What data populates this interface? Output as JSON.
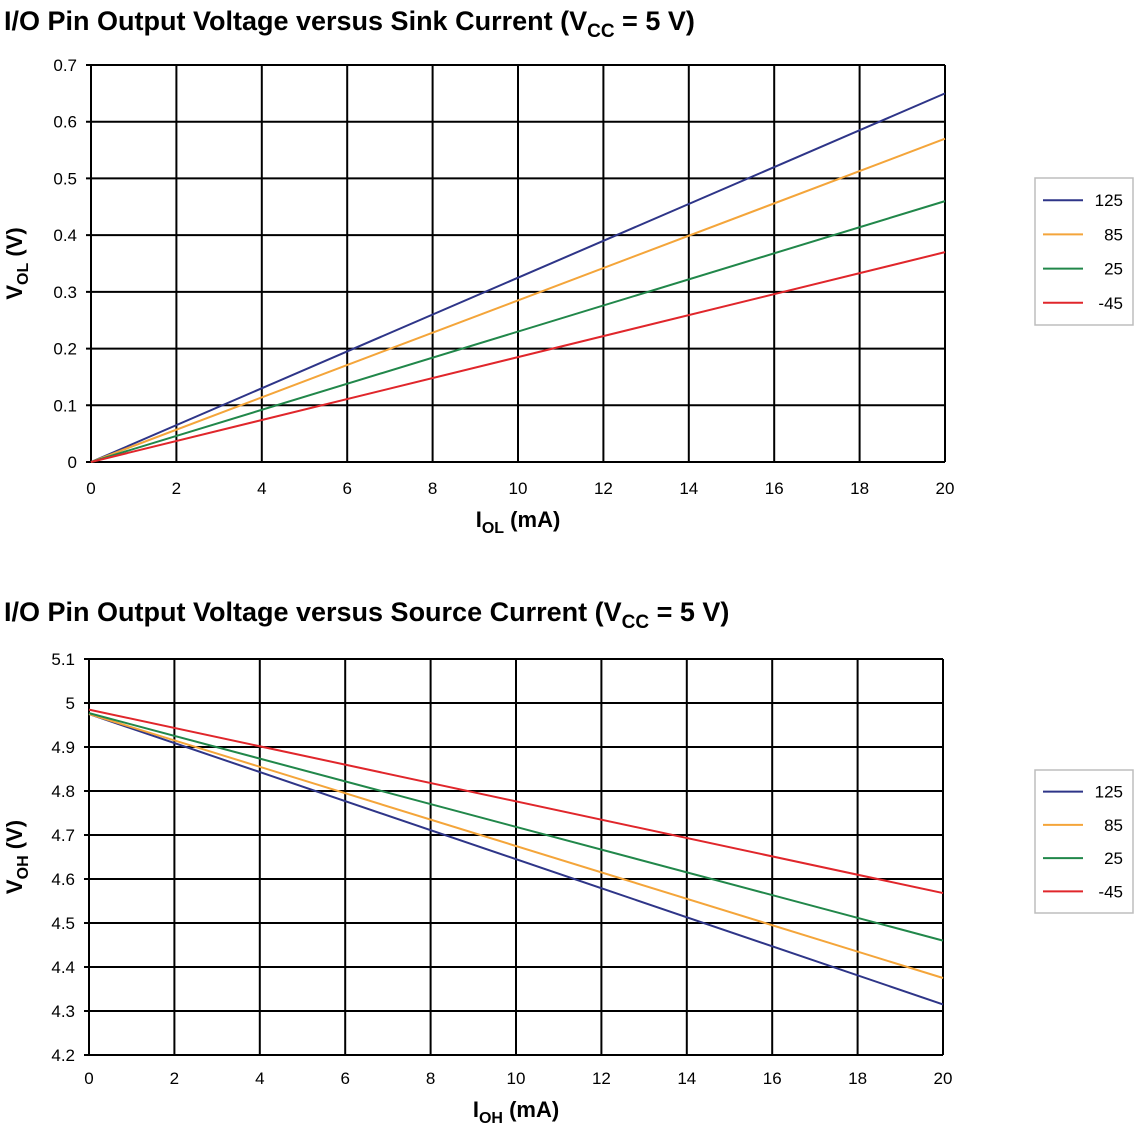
{
  "chart_data": [
    {
      "type": "line",
      "title": {
        "pre": "I/O Pin Output Voltage versus Sink Current (V",
        "sub": "CC",
        "post": " = 5 V)"
      },
      "xlabel": {
        "main": "I",
        "sub": "OL",
        "post": " (mA)"
      },
      "ylabel": {
        "main": "V",
        "sub": "OL",
        "post": " (V)"
      },
      "xlim": [
        0,
        20
      ],
      "ylim": [
        0,
        0.7
      ],
      "xticks": [
        "0",
        "2",
        "4",
        "6",
        "8",
        "10",
        "12",
        "14",
        "16",
        "18",
        "20"
      ],
      "yticks": [
        "0",
        "0.1",
        "0.2",
        "0.3",
        "0.4",
        "0.5",
        "0.6",
        "0.7"
      ],
      "grid": true,
      "legend_position": "right",
      "series": [
        {
          "name": "125",
          "color": "#2e3588",
          "x": [
            0,
            20
          ],
          "y": [
            0,
            0.65
          ]
        },
        {
          "name": "85",
          "color": "#f4a53a",
          "x": [
            0,
            20
          ],
          "y": [
            0,
            0.57
          ]
        },
        {
          "name": "25",
          "color": "#21874a",
          "x": [
            0,
            20
          ],
          "y": [
            0,
            0.46
          ]
        },
        {
          "name": "-45",
          "color": "#e0262b",
          "x": [
            0,
            20
          ],
          "y": [
            0,
            0.37
          ]
        }
      ]
    },
    {
      "type": "line",
      "title": {
        "pre": "I/O Pin Output Voltage versus Source Current (V",
        "sub": "CC",
        "post": " = 5 V)"
      },
      "xlabel": {
        "main": "I",
        "sub": "OH",
        "post": " (mA)"
      },
      "ylabel": {
        "main": "V",
        "sub": "OH",
        "post": " (V)"
      },
      "xlim": [
        0,
        20
      ],
      "ylim": [
        4.2,
        5.1
      ],
      "xticks": [
        "0",
        "2",
        "4",
        "6",
        "8",
        "10",
        "12",
        "14",
        "16",
        "18",
        "20"
      ],
      "yticks": [
        "4.2",
        "4.3",
        "4.4",
        "4.5",
        "4.6",
        "4.7",
        "4.8",
        "4.9",
        "5",
        "5.1"
      ],
      "grid": true,
      "legend_position": "right",
      "series": [
        {
          "name": "125",
          "color": "#2e3588",
          "x": [
            0,
            20
          ],
          "y": [
            4.975,
            4.315
          ]
        },
        {
          "name": "85",
          "color": "#f4a53a",
          "x": [
            0,
            20
          ],
          "y": [
            4.975,
            4.375
          ]
        },
        {
          "name": "25",
          "color": "#21874a",
          "x": [
            0,
            20
          ],
          "y": [
            4.977,
            4.46
          ]
        },
        {
          "name": "-45",
          "color": "#e0262b",
          "x": [
            0,
            20
          ],
          "y": [
            4.985,
            4.568
          ]
        }
      ]
    }
  ]
}
